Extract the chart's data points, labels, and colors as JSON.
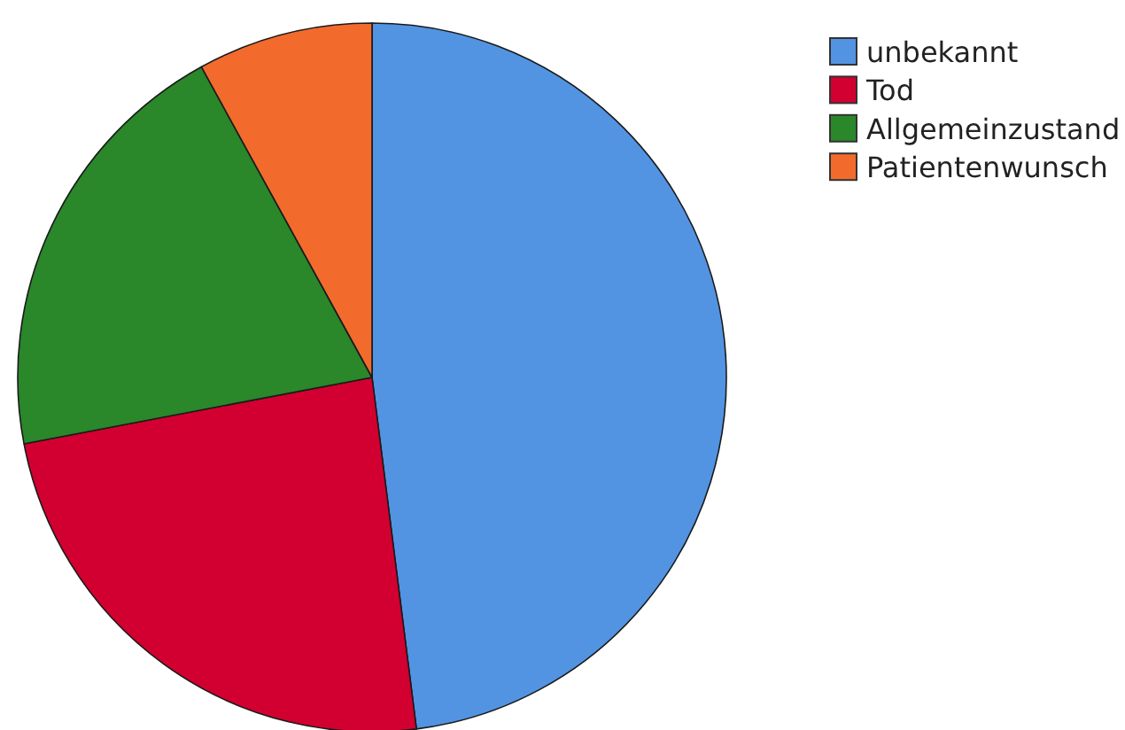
{
  "chart_data": {
    "type": "pie",
    "categories": [
      "unbekannt",
      "Tod",
      "Allgemeinzustand",
      "Patientenwunsch"
    ],
    "values": [
      48,
      24,
      20,
      8
    ],
    "colors": [
      "#5294e2",
      "#d20030",
      "#2a872a",
      "#f26b2d"
    ],
    "legend": "top right"
  }
}
